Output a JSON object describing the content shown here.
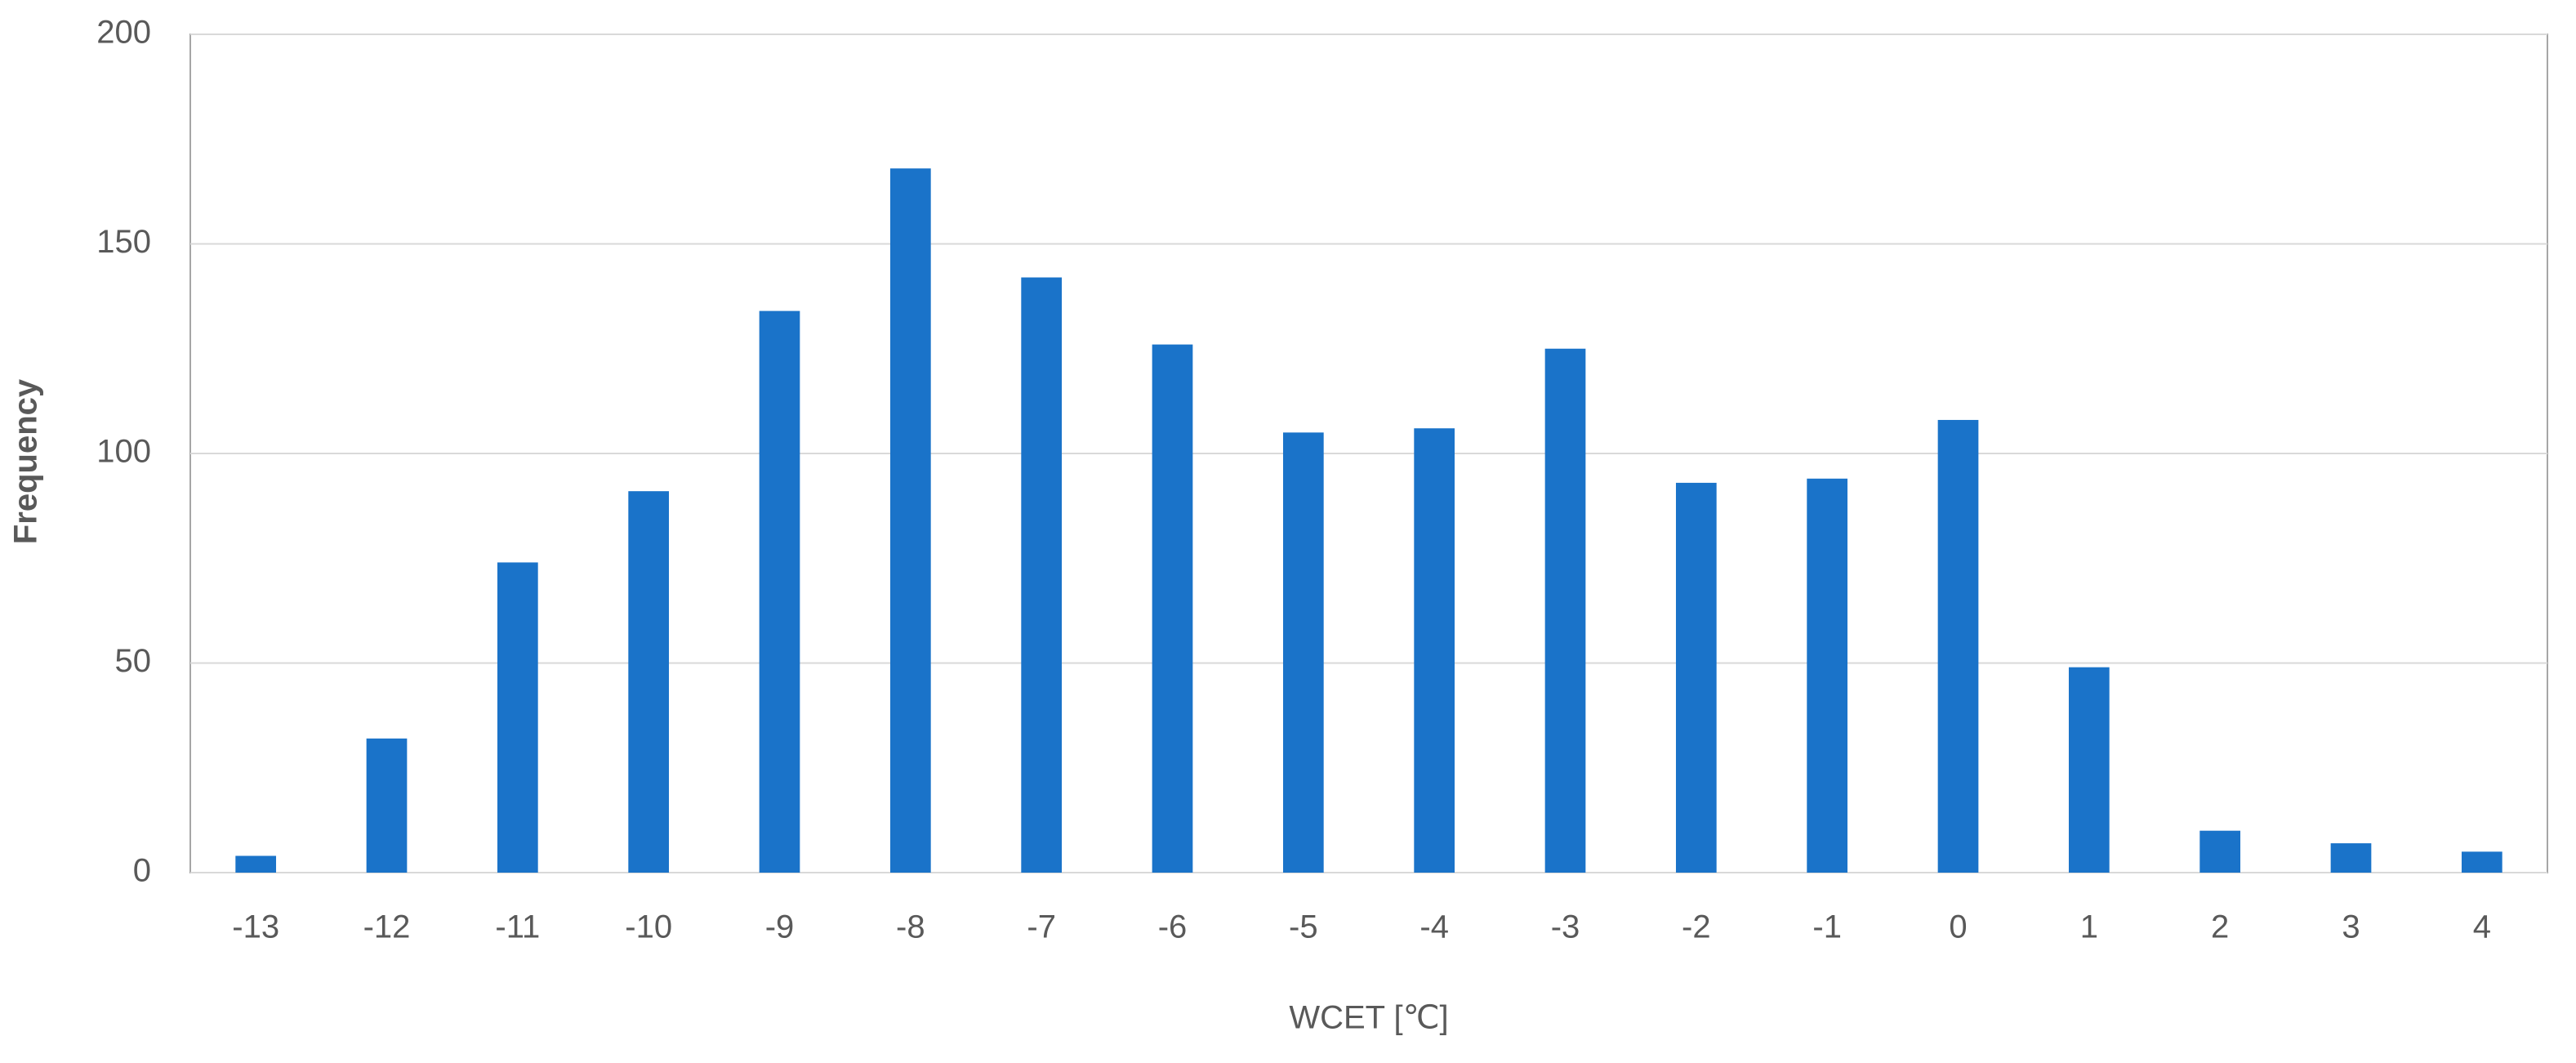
{
  "chart_data": {
    "type": "bar",
    "x_label": "WCET [℃]",
    "y_label": "Frequency",
    "categories": [
      "-13",
      "-12",
      "-11",
      "-10",
      "-9",
      "-8",
      "-7",
      "-6",
      "-5",
      "-4",
      "-3",
      "-2",
      "-1",
      "0",
      "1",
      "2",
      "3",
      "4"
    ],
    "values": [
      4,
      32,
      74,
      91,
      134,
      168,
      142,
      126,
      105,
      106,
      125,
      93,
      94,
      108,
      49,
      10,
      7,
      5
    ],
    "color": "#1a73c9",
    "ylim": [
      0,
      200
    ],
    "yticks": [
      0,
      50,
      100,
      150,
      200
    ],
    "grid": true
  }
}
